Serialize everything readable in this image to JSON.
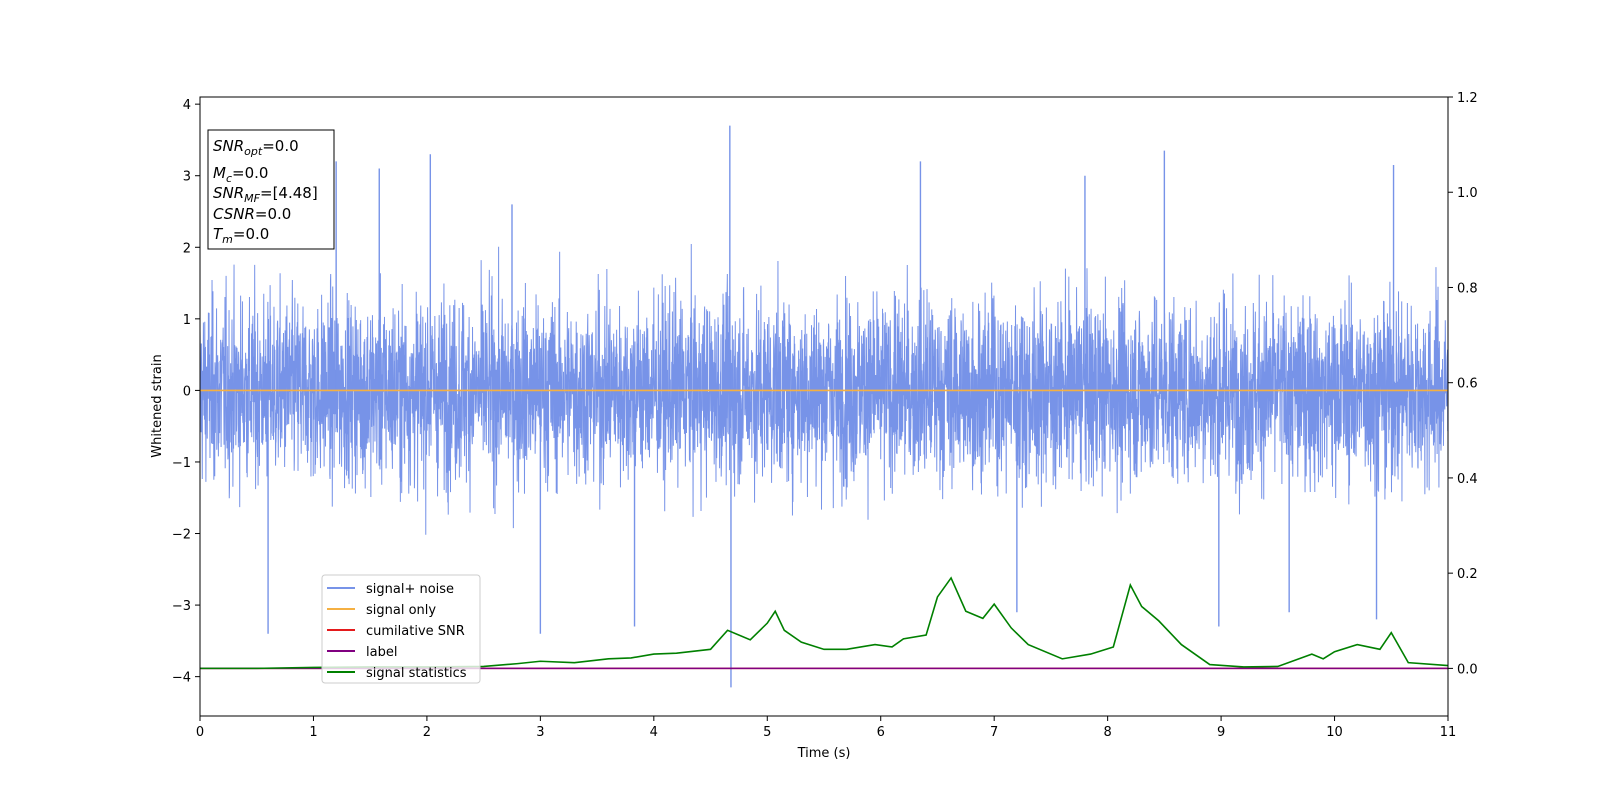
{
  "chart_data": {
    "type": "line",
    "xlabel": "Time (s)",
    "ylabel": "Whitened strain",
    "xlim": [
      0,
      11
    ],
    "ylim": [
      -4.55,
      4.1
    ],
    "y2lim": [
      -0.1,
      1.2
    ],
    "x_ticks": [
      "0",
      "1",
      "2",
      "3",
      "4",
      "5",
      "6",
      "7",
      "8",
      "9",
      "10",
      "11"
    ],
    "y_ticks": [
      "−4",
      "−3",
      "−2",
      "−1",
      "0",
      "1",
      "2",
      "3",
      "4"
    ],
    "y_tick_values": [
      -4,
      -3,
      -2,
      -1,
      0,
      1,
      2,
      3,
      4
    ],
    "y2_ticks": [
      "0.0",
      "0.2",
      "0.4",
      "0.6",
      "0.8",
      "1.0",
      "1.2"
    ],
    "y2_tick_values": [
      0.0,
      0.2,
      0.4,
      0.6,
      0.8,
      1.0,
      1.2
    ],
    "grid": false,
    "legend_position": "lower-left",
    "series": [
      {
        "name": "signal+ noise",
        "axis": "left",
        "color": "#7793e8",
        "description_values": {
          "typical_range": [
            -1.9,
            2.0
          ],
          "spikes": [
            {
              "x": 0.6,
              "y": -3.4
            },
            {
              "x": 1.2,
              "y": 3.2
            },
            {
              "x": 1.58,
              "y": 3.1
            },
            {
              "x": 2.03,
              "y": 3.3
            },
            {
              "x": 2.75,
              "y": 2.6
            },
            {
              "x": 3.0,
              "y": -3.4
            },
            {
              "x": 3.83,
              "y": -3.3
            },
            {
              "x": 4.67,
              "y": 3.7
            },
            {
              "x": 4.68,
              "y": -4.15
            },
            {
              "x": 6.35,
              "y": 3.2
            },
            {
              "x": 7.2,
              "y": -3.1
            },
            {
              "x": 7.8,
              "y": 3.0
            },
            {
              "x": 8.5,
              "y": 3.35
            },
            {
              "x": 8.98,
              "y": -3.3
            },
            {
              "x": 9.6,
              "y": -3.1
            },
            {
              "x": 10.37,
              "y": -3.2
            },
            {
              "x": 10.52,
              "y": 3.15
            }
          ]
        }
      },
      {
        "name": "signal only",
        "axis": "left",
        "color": "#f5b042",
        "x": [
          0,
          11
        ],
        "y": [
          0,
          0
        ]
      },
      {
        "name": "cumilative SNR",
        "axis": "right",
        "color": "#e41a1c",
        "x": [
          0,
          11
        ],
        "y": [
          0,
          0
        ]
      },
      {
        "name": "label",
        "axis": "right",
        "color": "#800080",
        "x": [
          0,
          11
        ],
        "y": [
          0,
          0
        ]
      },
      {
        "name": "signal statistics",
        "axis": "right",
        "color": "#008000",
        "x": [
          0,
          0.5,
          1.0,
          1.5,
          2.0,
          2.5,
          2.8,
          3.0,
          3.3,
          3.6,
          3.8,
          4.0,
          4.2,
          4.5,
          4.65,
          4.85,
          5.0,
          5.07,
          5.15,
          5.3,
          5.5,
          5.7,
          5.95,
          6.1,
          6.2,
          6.4,
          6.5,
          6.62,
          6.75,
          6.9,
          7.0,
          7.15,
          7.3,
          7.6,
          7.85,
          8.05,
          8.2,
          8.3,
          8.45,
          8.65,
          8.9,
          9.2,
          9.5,
          9.8,
          9.9,
          10.0,
          10.2,
          10.4,
          10.5,
          10.65,
          11.0
        ],
        "y": [
          0.0,
          0.0,
          0.002,
          0.003,
          0.003,
          0.004,
          0.01,
          0.015,
          0.012,
          0.02,
          0.022,
          0.03,
          0.032,
          0.04,
          0.08,
          0.06,
          0.095,
          0.12,
          0.08,
          0.055,
          0.04,
          0.04,
          0.05,
          0.045,
          0.062,
          0.07,
          0.15,
          0.19,
          0.12,
          0.105,
          0.135,
          0.085,
          0.05,
          0.02,
          0.03,
          0.045,
          0.175,
          0.13,
          0.1,
          0.05,
          0.008,
          0.003,
          0.004,
          0.03,
          0.02,
          0.035,
          0.05,
          0.04,
          0.075,
          0.012,
          0.006
        ]
      }
    ]
  },
  "infobox": {
    "snr_opt_label": "SNR",
    "snr_opt_sub": "opt",
    "snr_opt_value": "=0.0",
    "mc_label": "M",
    "mc_sub": "c",
    "mc_value": "=0.0",
    "snr_mf_label": "SNR",
    "snr_mf_sub": "MF",
    "snr_mf_value": "=[4.48]",
    "csnr_label": "CSNR",
    "csnr_value": "=0.0",
    "tm_label": "T",
    "tm_sub": "m",
    "tm_value": "=0.0"
  }
}
